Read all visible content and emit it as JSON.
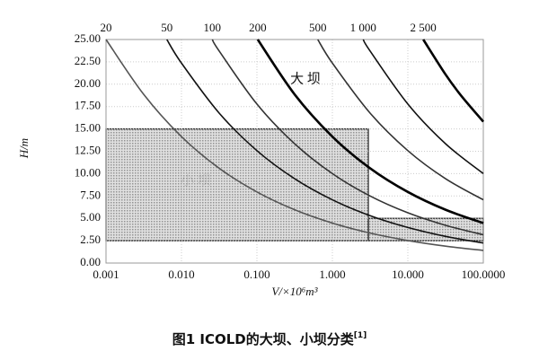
{
  "chart_data": {
    "type": "line",
    "xscale": "log",
    "title": "图1 ICOLD的大坝、小坝分类",
    "title_ref": "[1]",
    "xlabel": "V/×10⁶m³",
    "ylabel": "H/m",
    "annotations": [
      "大 坝",
      "小 坝"
    ],
    "xlim": [
      0.001,
      100
    ],
    "ylim": [
      0,
      25
    ],
    "xticks": [
      {
        "value": 0.001,
        "label": "0.001"
      },
      {
        "value": 0.01,
        "label": "0.010"
      },
      {
        "value": 0.1,
        "label": "0.100"
      },
      {
        "value": 1,
        "label": "1.000"
      },
      {
        "value": 10,
        "label": "10.000"
      },
      {
        "value": 100,
        "label": "100.0000"
      }
    ],
    "yticks": [
      {
        "value": 0,
        "label": "0.00"
      },
      {
        "value": 2.5,
        "label": "2.50"
      },
      {
        "value": 5,
        "label": "5.00"
      },
      {
        "value": 7.5,
        "label": "7.50"
      },
      {
        "value": 10,
        "label": "10.00"
      },
      {
        "value": 12.5,
        "label": "12.50"
      },
      {
        "value": 15,
        "label": "15.00"
      },
      {
        "value": 17.5,
        "label": "17.50"
      },
      {
        "value": 20,
        "label": "20.00"
      },
      {
        "value": 22.5,
        "label": "22.50"
      },
      {
        "value": 25,
        "label": "25.00"
      }
    ],
    "regions": [
      {
        "x": [
          0.001,
          3
        ],
        "y": [
          2.5,
          15
        ]
      },
      {
        "x": [
          3,
          100
        ],
        "y": [
          2.5,
          5
        ]
      }
    ],
    "region_color": "#b8b8b8",
    "series": [
      {
        "name": "20",
        "color": "#555",
        "x": [
          0.001,
          0.00316,
          0.01,
          0.0316,
          0.1,
          0.316,
          1,
          3.16,
          10,
          31.6,
          100
        ],
        "values": [
          25,
          18.86,
          14.14,
          10.6,
          7.95,
          5.96,
          4.47,
          3.35,
          2.52,
          1.89,
          1.41
        ]
      },
      {
        "name": "50",
        "color": "#111",
        "x": [
          0.0064,
          0.01,
          0.0316,
          0.1,
          0.316,
          1,
          3.16,
          10,
          31.6,
          100
        ],
        "values": [
          25,
          22.36,
          16.77,
          12.57,
          9.43,
          7.07,
          5.3,
          3.98,
          2.98,
          2.24
        ]
      },
      {
        "name": "100",
        "color": "#333",
        "x": [
          0.0256,
          0.0316,
          0.1,
          0.316,
          1,
          3.16,
          10,
          31.6,
          100
        ],
        "values": [
          25,
          23.71,
          17.78,
          13.34,
          10,
          7.5,
          5.62,
          4.22,
          3.16
        ]
      },
      {
        "name": "200",
        "color": "#000",
        "x": [
          0.1024,
          0.316,
          1,
          3.16,
          10,
          31.6,
          100
        ],
        "values": [
          25,
          18.86,
          14.14,
          10.6,
          7.95,
          5.96,
          4.47
        ]
      },
      {
        "name": "500",
        "color": "#333",
        "x": [
          0.64,
          1,
          3.16,
          10,
          31.6,
          100
        ],
        "values": [
          25,
          22.36,
          16.77,
          12.57,
          9.43,
          7.07
        ]
      },
      {
        "name": "1 000",
        "color": "#111",
        "x": [
          2.56,
          3.16,
          10,
          31.6,
          100
        ],
        "values": [
          25,
          23.71,
          17.78,
          13.34,
          10
        ]
      },
      {
        "name": "2 500",
        "color": "#000",
        "x": [
          16,
          31.6,
          50,
          100
        ],
        "values": [
          25,
          21.09,
          18.8,
          15.81
        ]
      }
    ]
  }
}
